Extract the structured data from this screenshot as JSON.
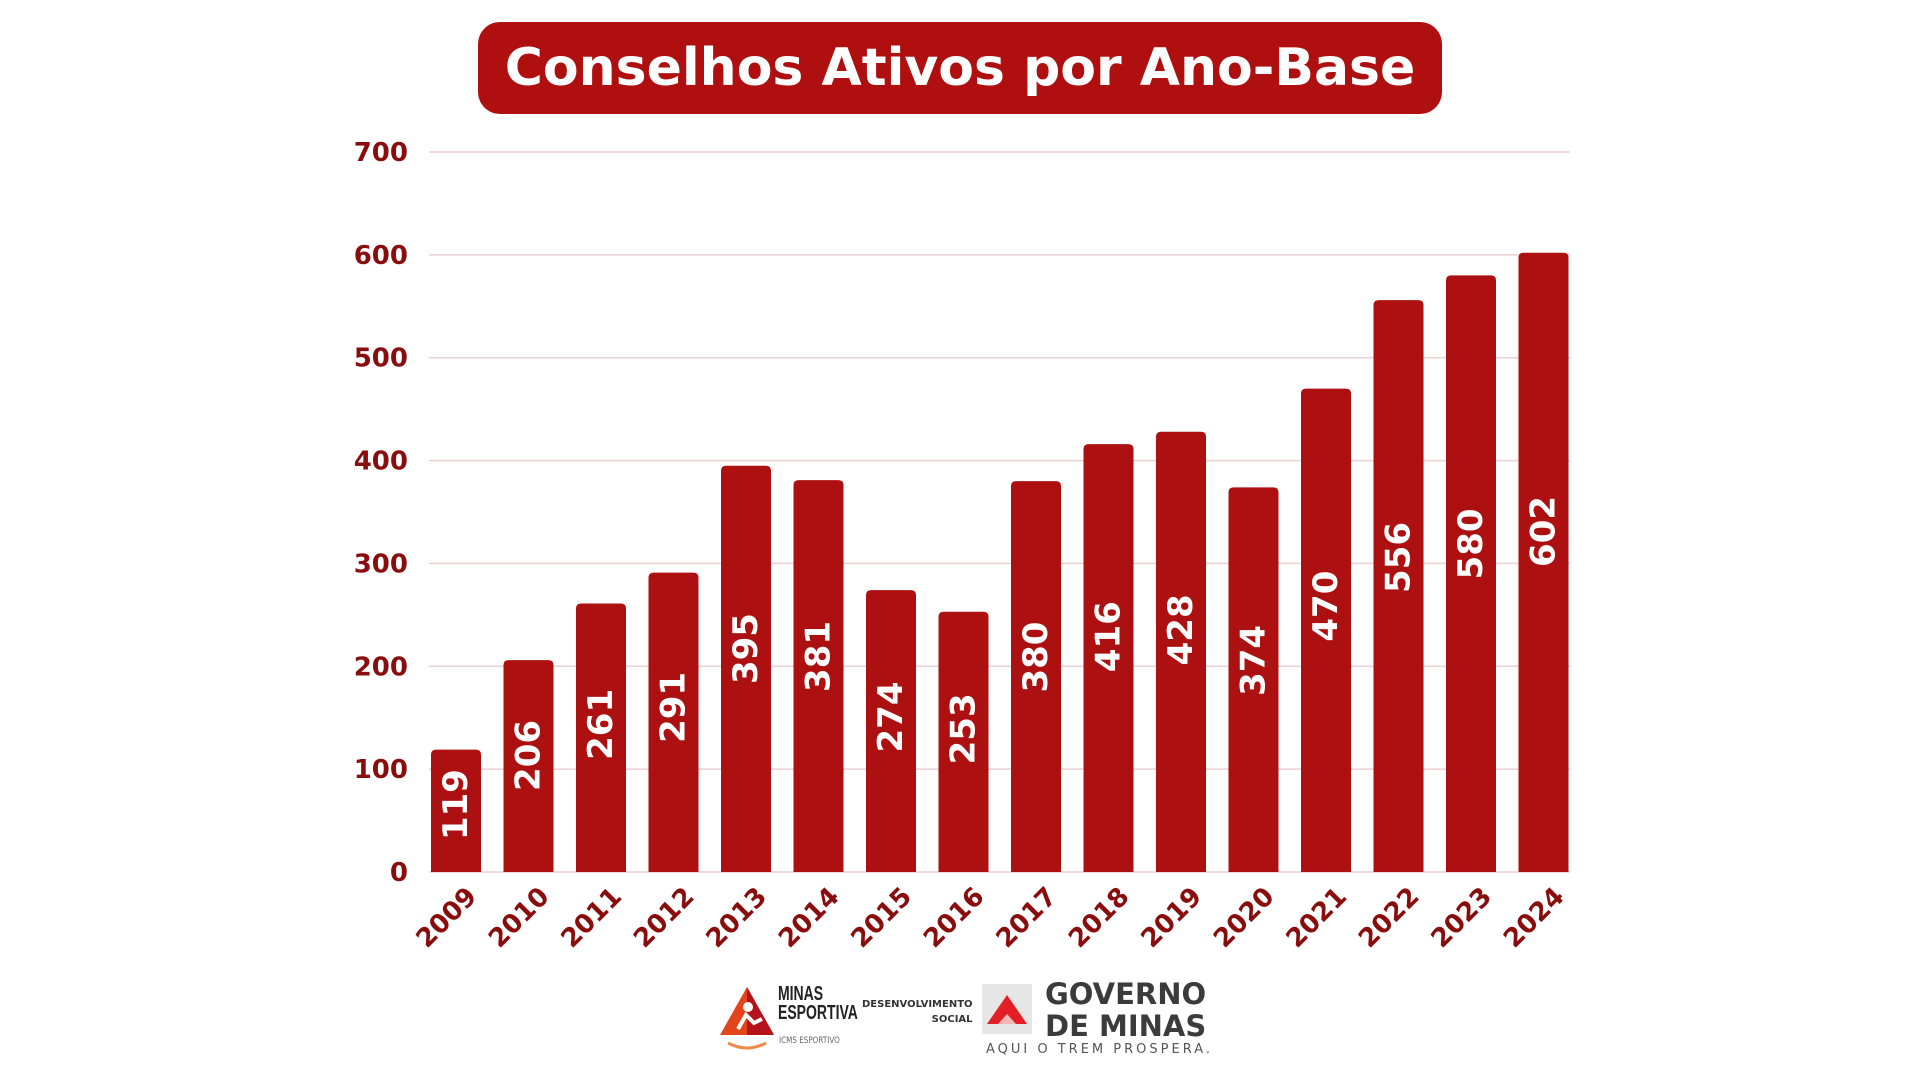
{
  "chart_data": {
    "type": "bar",
    "title": "Conselhos Ativos por Ano-Base",
    "categories": [
      "2009",
      "2010",
      "2011",
      "2012",
      "2013",
      "2014",
      "2015",
      "2016",
      "2017",
      "2018",
      "2019",
      "2020",
      "2021",
      "2022",
      "2023",
      "2024"
    ],
    "values": [
      119,
      206,
      261,
      291,
      395,
      381,
      274,
      253,
      380,
      416,
      428,
      374,
      470,
      556,
      580,
      602
    ],
    "xlabel": "",
    "ylabel": "",
    "ylim": [
      0,
      700
    ],
    "yticks": [
      0,
      100,
      200,
      300,
      400,
      500,
      600,
      700
    ],
    "grid": true,
    "data_labels": true,
    "bar_color": "#ad1010",
    "text_color": "#8a0d0d",
    "title_bg": "#b00f10"
  },
  "footer": {
    "minas_esportiva": [
      "MINAS",
      "ESPORTIVA"
    ],
    "icms": "ICMS ESPORTIVO",
    "desenvolvimento": [
      "DESENVOLVIMENTO",
      "SOCIAL"
    ],
    "governo": [
      "GOVERNO",
      "DE MINAS"
    ],
    "slogan": "AQUI O TREM PROSPERA."
  }
}
